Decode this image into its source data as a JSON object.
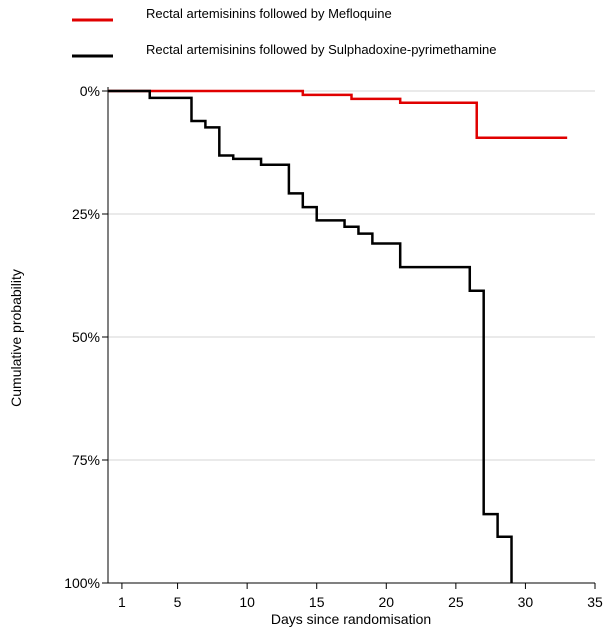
{
  "chart_data": {
    "type": "line",
    "subtype": "step",
    "title": "",
    "xlabel": "Days since randomisation",
    "ylabel": "Cumulative probability",
    "xlim": [
      0,
      35
    ],
    "ylim": [
      0,
      100
    ],
    "y_inverted": true,
    "x_ticks": [
      1,
      5,
      10,
      15,
      20,
      25,
      30,
      35
    ],
    "y_ticks": [
      0,
      25,
      50,
      75,
      100
    ],
    "y_tick_labels": [
      "0%",
      "25%",
      "50%",
      "75%",
      "100%"
    ],
    "grid": "horizontal",
    "legend_position": "top",
    "series": [
      {
        "name": "Rectal artemisinins followed by Mefloquine",
        "color": "#e00000",
        "x": [
          0,
          14,
          17.5,
          21,
          26.5,
          33
        ],
        "y": [
          0,
          0.8,
          1.6,
          2.4,
          9.5,
          9.5
        ]
      },
      {
        "name": "Rectal artemisinins followed by Sulphadoxine-pyrimethamine",
        "color": "#000000",
        "x": [
          0,
          3,
          6,
          7,
          8,
          9,
          11,
          13,
          14,
          15,
          17,
          18,
          19,
          21,
          26,
          27,
          28,
          29
        ],
        "y": [
          0,
          1.4,
          6.1,
          7.4,
          13.1,
          13.8,
          15.0,
          20.8,
          23.6,
          26.3,
          27.6,
          29.0,
          31.0,
          35.8,
          40.6,
          86.0,
          90.6,
          100
        ]
      }
    ]
  }
}
